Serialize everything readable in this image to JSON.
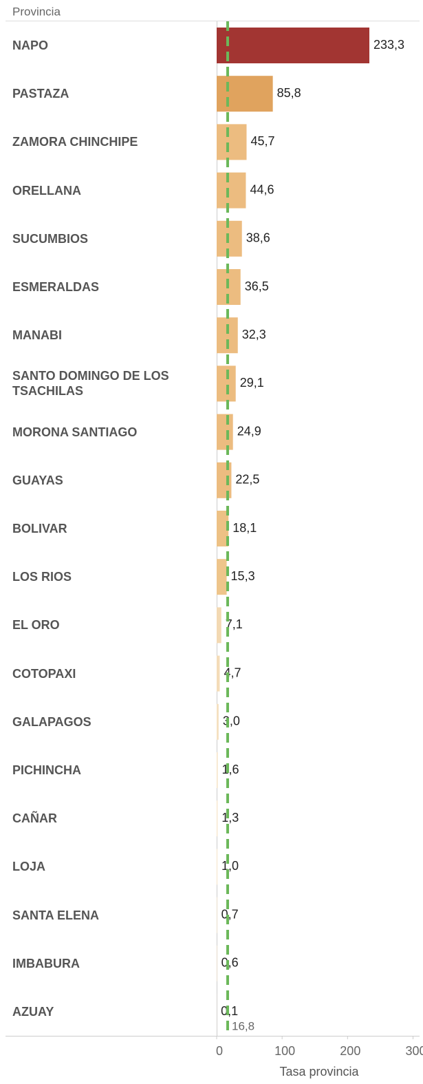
{
  "chart_data": {
    "type": "hbar",
    "y_title": "Provincia",
    "x_title": "Tasa provincia",
    "categories": [
      "NAPO",
      "PASTAZA",
      "ZAMORA CHINCHIPE",
      "ORELLANA",
      "SUCUMBIOS",
      "ESMERALDAS",
      "MANABI",
      "SANTO DOMINGO DE LOS TSACHILAS",
      "MORONA SANTIAGO",
      "GUAYAS",
      "BOLIVAR",
      "LOS RIOS",
      "EL ORO",
      "COTOPAXI",
      "GALAPAGOS",
      "PICHINCHA",
      "CAÑAR",
      "LOJA",
      "SANTA ELENA",
      "IMBABURA",
      "AZUAY"
    ],
    "values": [
      233.3,
      85.8,
      45.7,
      44.6,
      38.6,
      36.5,
      32.3,
      29.1,
      24.9,
      22.5,
      18.1,
      15.3,
      7.1,
      4.7,
      3.0,
      1.6,
      1.3,
      1.0,
      0.7,
      0.6,
      0.1
    ],
    "value_labels": [
      "233,3",
      "85,8",
      "45,7",
      "44,6",
      "38,6",
      "36,5",
      "32,3",
      "29,1",
      "24,9",
      "22,5",
      "18,1",
      "15,3",
      "7,1",
      "4,7",
      "3,0",
      "1,6",
      "1,3",
      "1,0",
      "0,7",
      "0,6",
      "0,1"
    ],
    "colors": [
      "#a23532",
      "#e0a35e",
      "#ecbc80",
      "#ecbc80",
      "#ecbc80",
      "#ecbc80",
      "#ecbc80",
      "#ecbc80",
      "#ecbc80",
      "#ecbc80",
      "#edc185",
      "#eec58b",
      "#f3d9b3",
      "#f4dcb8",
      "#f5e0c0",
      "#f6e3c6",
      "#f6e3c6",
      "#f6e3c6",
      "#f6e3c6",
      "#f6e3c6",
      "#f6e3c6"
    ],
    "xlim": [
      0,
      310
    ],
    "xticks": [
      0,
      100,
      200,
      300
    ],
    "reference_line": {
      "value": 16.8,
      "label": "16,8",
      "color": "#6cb85a"
    }
  }
}
